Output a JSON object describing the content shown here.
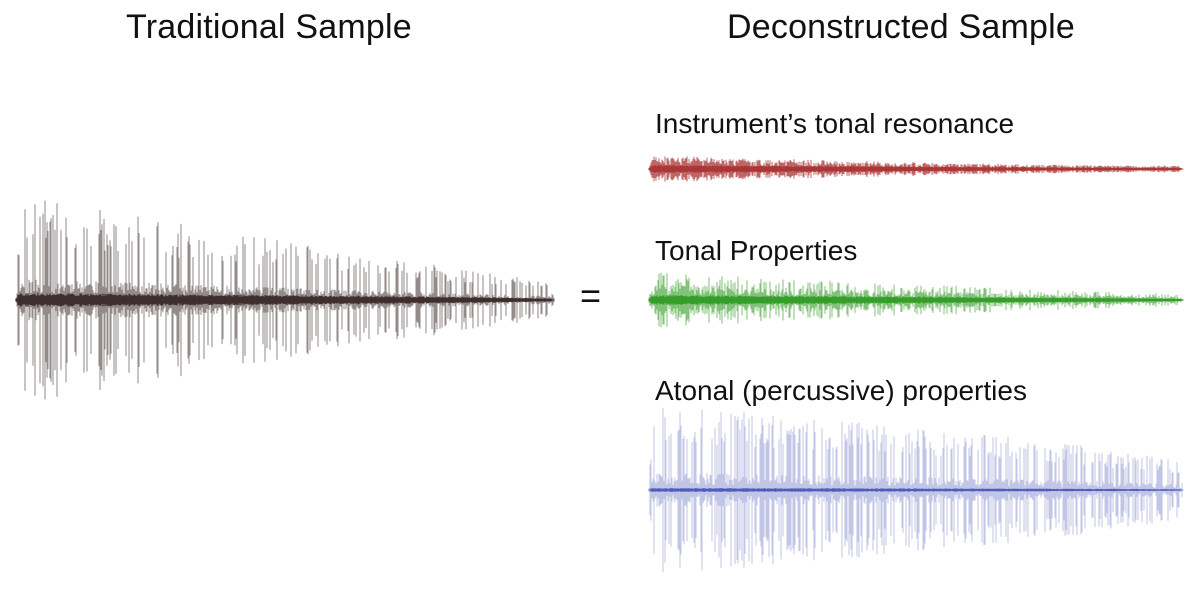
{
  "titles": {
    "traditional": "Traditional Sample",
    "deconstructed": "Deconstructed Sample"
  },
  "equals_sign": "=",
  "traditional_wave": {
    "color": "#3a2a2a"
  },
  "components": [
    {
      "label": "Instrument’s tonal resonance",
      "color": "#a83232"
    },
    {
      "label": "Tonal Properties",
      "color": "#2f9a22"
    },
    {
      "label": "Atonal (percussive) properties",
      "color": "#4c58b8"
    }
  ]
}
